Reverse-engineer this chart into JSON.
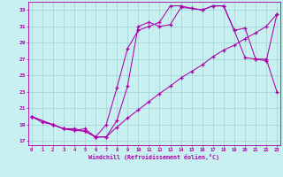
{
  "bg_color": "#c8f0f0",
  "line_color": "#aa00aa",
  "grid_color": "#99cccc",
  "xlabel": "Windchill (Refroidissement éolien,°C)",
  "line1_x": [
    0,
    1,
    2,
    3,
    4,
    5,
    6,
    7,
    8,
    9,
    10,
    11,
    12,
    13,
    14,
    15,
    16,
    17,
    18,
    19,
    20,
    21,
    22,
    23
  ],
  "line1_y": [
    20.0,
    19.3,
    19.0,
    18.5,
    18.3,
    18.5,
    17.5,
    17.5,
    18.7,
    19.8,
    20.8,
    21.8,
    22.8,
    23.7,
    24.7,
    25.5,
    26.3,
    27.3,
    28.1,
    28.7,
    29.5,
    30.2,
    31.0,
    32.5
  ],
  "line2_x": [
    0,
    2,
    3,
    4,
    5,
    6,
    7,
    8,
    9,
    10,
    11,
    12,
    13,
    14,
    15,
    16,
    17,
    18,
    19,
    20,
    21,
    22,
    23
  ],
  "line2_y": [
    20.0,
    19.0,
    18.5,
    18.5,
    18.2,
    17.5,
    19.0,
    23.5,
    28.3,
    30.5,
    31.0,
    31.5,
    33.5,
    33.5,
    33.2,
    33.0,
    33.5,
    33.5,
    30.5,
    27.2,
    27.0,
    27.0,
    23.0
  ],
  "line3_x": [
    0,
    2,
    3,
    4,
    5,
    6,
    7,
    8,
    9,
    10,
    11,
    12,
    13,
    14,
    15,
    16,
    17,
    18,
    19,
    20,
    21,
    22,
    23
  ],
  "line3_y": [
    20.0,
    19.0,
    18.5,
    18.3,
    18.2,
    17.5,
    17.5,
    19.5,
    23.7,
    31.0,
    31.5,
    31.0,
    31.2,
    33.3,
    33.2,
    33.0,
    33.5,
    33.5,
    30.5,
    30.8,
    27.0,
    26.8,
    32.5
  ],
  "xticks": [
    0,
    1,
    2,
    3,
    4,
    5,
    6,
    7,
    8,
    9,
    10,
    11,
    12,
    13,
    14,
    15,
    16,
    17,
    18,
    19,
    20,
    21,
    22,
    23
  ],
  "yticks": [
    17,
    19,
    21,
    23,
    25,
    27,
    29,
    31,
    33
  ],
  "xlim": [
    -0.3,
    23.3
  ],
  "ylim": [
    16.5,
    34.0
  ]
}
